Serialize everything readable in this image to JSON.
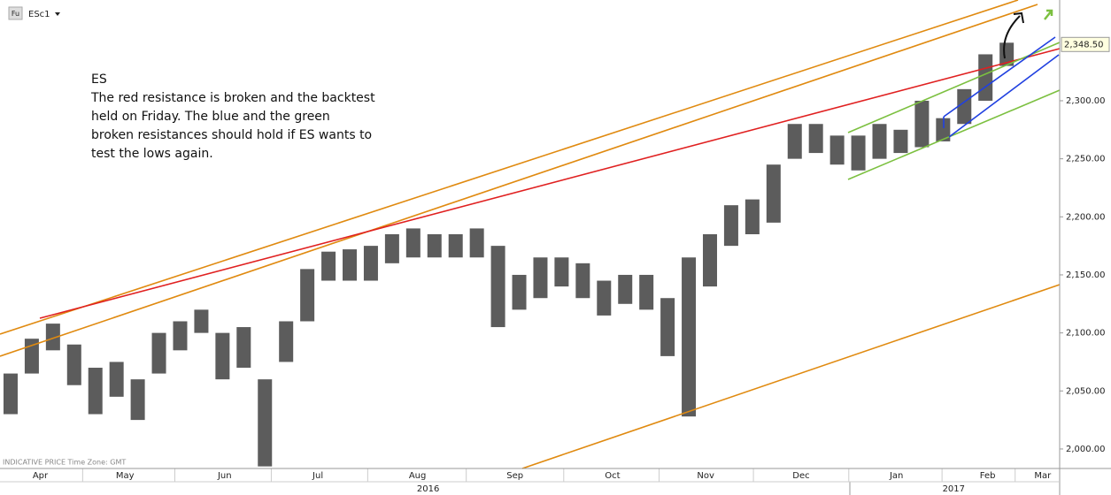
{
  "header": {
    "badge": "Fu",
    "symbol": "ESc1"
  },
  "footer": "INDICATIVE PRICE   Time Zone: GMT",
  "annotation": [
    "ES",
    "The red resistance is broken and the backtest",
    "held on Friday. The blue and the green",
    "broken resistances should hold if ES wants to",
    "test the lows again."
  ],
  "chart_data": {
    "type": "ohlc",
    "color": "#333333",
    "high": [
      2065,
      2095,
      2108,
      2090,
      2070,
      2075,
      2060,
      2100,
      2110,
      2120,
      2100,
      2105,
      2060,
      2110,
      2155,
      2170,
      2172,
      2175,
      2185,
      2190,
      2185,
      2185,
      2190,
      2175,
      2150,
      2165,
      2165,
      2160,
      2145,
      2150,
      2150,
      2130,
      2165,
      2185,
      2210,
      2215,
      2245,
      2280,
      2280,
      2270,
      2270,
      2280,
      2275,
      2300,
      2285,
      2310,
      2340,
      2350
    ],
    "low": [
      2030,
      2065,
      2085,
      2055,
      2030,
      2045,
      2025,
      2065,
      2085,
      2100,
      2060,
      2070,
      1985,
      2075,
      2110,
      2145,
      2145,
      2145,
      2160,
      2165,
      2165,
      2165,
      2165,
      2105,
      2120,
      2130,
      2140,
      2130,
      2115,
      2125,
      2120,
      2080,
      2028,
      2140,
      2175,
      2185,
      2195,
      2250,
      2255,
      2245,
      2240,
      2250,
      2255,
      2260,
      2265,
      2280,
      2300,
      2330
    ],
    "xlim": [
      -0.5,
      49.5
    ],
    "xticks": [
      {
        "value": 1.4,
        "label": "Apr"
      },
      {
        "value": 5.4,
        "label": "May"
      },
      {
        "value": 10.1,
        "label": "Jun"
      },
      {
        "value": 14.5,
        "label": "Jul"
      },
      {
        "value": 19.2,
        "label": "Aug"
      },
      {
        "value": 23.8,
        "label": "Sep"
      },
      {
        "value": 28.4,
        "label": "Oct"
      },
      {
        "value": 32.8,
        "label": "Nov"
      },
      {
        "value": 37.3,
        "label": "Dec"
      },
      {
        "value": 41.8,
        "label": "Jan"
      },
      {
        "value": 46.1,
        "label": "Feb"
      },
      {
        "value": 48.7,
        "label": "Mar"
      }
    ],
    "years": [
      {
        "value": 19.7,
        "label": "2016"
      },
      {
        "value": 44.5,
        "label": "2017"
      }
    ],
    "ylim": [
      1983.2,
      2386.8
    ],
    "yticks": [
      {
        "value": 2000,
        "label": "2,000.00"
      },
      {
        "value": 2050,
        "label": "2,050.00"
      },
      {
        "value": 2100,
        "label": "2,100.00"
      },
      {
        "value": 2150,
        "label": "2,150.00"
      },
      {
        "value": 2200,
        "label": "2,200.00"
      },
      {
        "value": 2250,
        "label": "2,250.00"
      },
      {
        "value": 2300,
        "label": "2,300.00"
      }
    ],
    "last_price": {
      "value": 2348.5,
      "label": "2,348.50"
    }
  }
}
